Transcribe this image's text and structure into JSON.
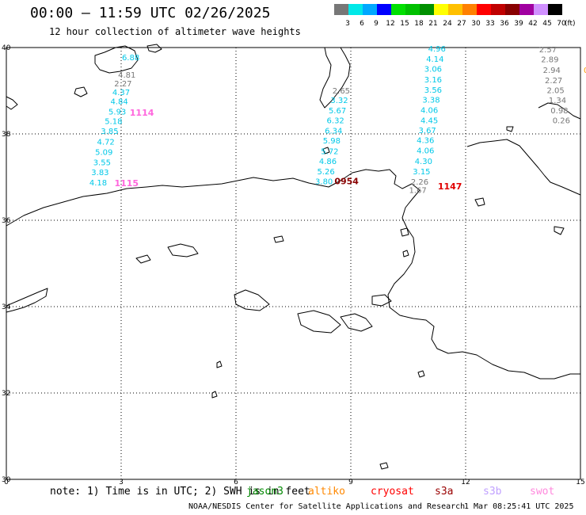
{
  "header": {
    "title": "00:00 – 11:59 UTC 02/26/2025",
    "subtitle": "12 hour collection of altimeter wave heights"
  },
  "colorbar": {
    "swatches": [
      {
        "label": "3",
        "color": "#777777"
      },
      {
        "label": "6",
        "color": "#00e8e8"
      },
      {
        "label": "9",
        "color": "#00a8ff"
      },
      {
        "label": "12",
        "color": "#0000ff"
      },
      {
        "label": "15",
        "color": "#00e000"
      },
      {
        "label": "18",
        "color": "#00c000"
      },
      {
        "label": "21",
        "color": "#009000"
      },
      {
        "label": "24",
        "color": "#ffff00"
      },
      {
        "label": "27",
        "color": "#ffc000"
      },
      {
        "label": "30",
        "color": "#ff8000"
      },
      {
        "label": "33",
        "color": "#ff0000"
      },
      {
        "label": "36",
        "color": "#c00000"
      },
      {
        "label": "39",
        "color": "#880000"
      },
      {
        "label": "42",
        "color": "#a000a0"
      },
      {
        "label": "45",
        "color": "#d090ff"
      },
      {
        "label": "70",
        "color": "#000000"
      }
    ],
    "unit": "(ft)"
  },
  "map": {
    "lon_ticks": [
      "0",
      "3",
      "6",
      "9",
      "12",
      "15"
    ],
    "lat_ticks": [
      "40",
      "38",
      "36",
      "34",
      "32",
      "30"
    ],
    "tracks": [
      {
        "satellite": "cryosat-like cyan track 1",
        "color": "#00c8e8",
        "points": [
          {
            "lon": 3.25,
            "lat": 39.78,
            "v": "6.88"
          },
          {
            "lon": 3.15,
            "lat": 39.38,
            "v": "4.81",
            "color": "#777777"
          },
          {
            "lon": 3.05,
            "lat": 39.17,
            "v": "2.27",
            "color": "#777777"
          },
          {
            "lon": 3.0,
            "lat": 38.97,
            "v": "4.37"
          },
          {
            "lon": 2.95,
            "lat": 38.76,
            "v": "4.84"
          },
          {
            "lon": 2.9,
            "lat": 38.52,
            "v": "5.93"
          },
          {
            "lon": 2.8,
            "lat": 38.3,
            "v": "5.18"
          },
          {
            "lon": 2.7,
            "lat": 38.07,
            "v": "3.85"
          },
          {
            "lon": 2.6,
            "lat": 37.83,
            "v": "4.72"
          },
          {
            "lon": 2.55,
            "lat": 37.59,
            "v": "5.09"
          },
          {
            "lon": 2.5,
            "lat": 37.35,
            "v": "3.55"
          },
          {
            "lon": 2.45,
            "lat": 37.12,
            "v": "3.83"
          },
          {
            "lon": 2.4,
            "lat": 36.88,
            "v": "4.18"
          }
        ]
      },
      {
        "satellite": "cyan track 2",
        "color": "#00c8e8",
        "points": [
          {
            "lon": 8.75,
            "lat": 39.01,
            "v": "2.65",
            "color": "#777777"
          },
          {
            "lon": 8.7,
            "lat": 38.79,
            "v": "3.32"
          },
          {
            "lon": 8.65,
            "lat": 38.55,
            "v": "5.67"
          },
          {
            "lon": 8.6,
            "lat": 38.32,
            "v": "6.32"
          },
          {
            "lon": 8.55,
            "lat": 38.08,
            "v": "6.34"
          },
          {
            "lon": 8.5,
            "lat": 37.85,
            "v": "5.98"
          },
          {
            "lon": 8.45,
            "lat": 37.61,
            "v": "5.72"
          },
          {
            "lon": 8.4,
            "lat": 37.38,
            "v": "4.86"
          },
          {
            "lon": 8.35,
            "lat": 37.14,
            "v": "5.26"
          },
          {
            "lon": 8.3,
            "lat": 36.91,
            "v": "3.80"
          }
        ]
      },
      {
        "satellite": "cyan track 3",
        "color": "#00c8e8",
        "points": [
          {
            "lon": 11.25,
            "lat": 39.98,
            "v": "4.96"
          },
          {
            "lon": 11.2,
            "lat": 39.74,
            "v": "4.14"
          },
          {
            "lon": 11.15,
            "lat": 39.51,
            "v": "3.06"
          },
          {
            "lon": 11.15,
            "lat": 39.27,
            "v": "3.16"
          },
          {
            "lon": 11.15,
            "lat": 39.03,
            "v": "3.56"
          },
          {
            "lon": 11.1,
            "lat": 38.8,
            "v": "3.38"
          },
          {
            "lon": 11.05,
            "lat": 38.56,
            "v": "4.06"
          },
          {
            "lon": 11.05,
            "lat": 38.32,
            "v": "4.45"
          },
          {
            "lon": 11.0,
            "lat": 38.09,
            "v": "3.67"
          },
          {
            "lon": 10.95,
            "lat": 37.86,
            "v": "4.36"
          },
          {
            "lon": 10.95,
            "lat": 37.62,
            "v": "4.06"
          },
          {
            "lon": 10.9,
            "lat": 37.38,
            "v": "4.30"
          },
          {
            "lon": 10.85,
            "lat": 37.14,
            "v": "3.15"
          },
          {
            "lon": 10.8,
            "lat": 36.9,
            "v": "2.26",
            "color": "#777777"
          },
          {
            "lon": 10.75,
            "lat": 36.71,
            "v": "1.67",
            "color": "#777777"
          }
        ]
      },
      {
        "satellite": "grey track 4",
        "color": "#777777",
        "points": [
          {
            "lon": 14.15,
            "lat": 39.96,
            "v": "2.57"
          },
          {
            "lon": 14.2,
            "lat": 39.73,
            "v": "2.89"
          },
          {
            "lon": 14.25,
            "lat": 39.49,
            "v": "2.94"
          },
          {
            "lon": 14.3,
            "lat": 39.25,
            "v": "2.27"
          },
          {
            "lon": 14.35,
            "lat": 39.02,
            "v": "2.05"
          },
          {
            "lon": 14.4,
            "lat": 38.79,
            "v": "1.34"
          },
          {
            "lon": 14.45,
            "lat": 38.55,
            "v": "0.98"
          },
          {
            "lon": 14.5,
            "lat": 38.32,
            "v": "0.26"
          }
        ]
      }
    ],
    "time_labels": [
      {
        "lon": 3.25,
        "lat": 38.5,
        "v": "1114",
        "color": "#ff66dd"
      },
      {
        "lon": 2.85,
        "lat": 36.86,
        "v": "1115",
        "color": "#ff66dd"
      },
      {
        "lon": 8.6,
        "lat": 36.91,
        "v": "0954",
        "color": "#880000"
      },
      {
        "lon": 11.3,
        "lat": 36.79,
        "v": "1147",
        "color": "#e00000"
      }
    ],
    "right_edge_marker": {
      "lon": 15.0,
      "lat": 39.49,
      "v": "0",
      "color": "#ff9900"
    },
    "map_label_colors": {
      "coast": "#000000",
      "grid": "#000000"
    }
  },
  "footer": {
    "note": "note: 1) Time is in UTC; 2) SWH is in feet",
    "legend": [
      {
        "name": "jason3",
        "color": "#008800"
      },
      {
        "name": "altiko",
        "color": "#ff8800"
      },
      {
        "name": "cryosat",
        "color": "#ff0000"
      },
      {
        "name": "s3a",
        "color": "#990000"
      },
      {
        "name": "s3b",
        "color": "#c0a0ff"
      },
      {
        "name": "swot",
        "color": "#ff88dd"
      }
    ],
    "credit": "NOAA/NESDIS Center for Satellite Applications and Research",
    "timestamp": "1 Mar 08:25:41 UTC 2025"
  }
}
